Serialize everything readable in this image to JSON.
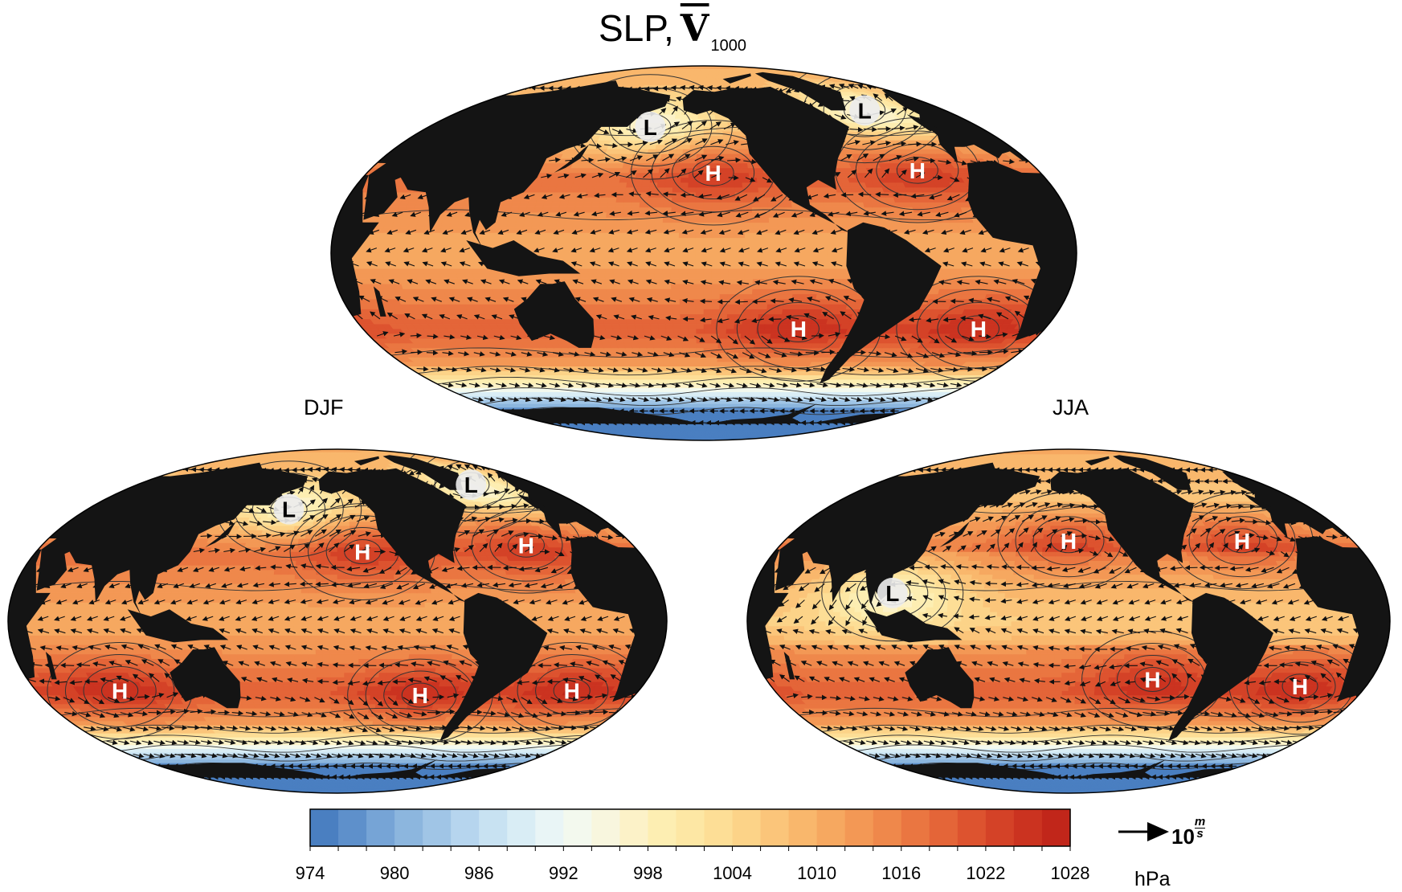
{
  "title": {
    "prefix": "SLP,",
    "vector_symbol": "V",
    "subscript": "1000"
  },
  "panels": [
    {
      "id": "annual",
      "label": ""
    },
    {
      "id": "djf",
      "label": "DJF"
    },
    {
      "id": "jja",
      "label": "JJA"
    }
  ],
  "pressure_centers": {
    "annual": [
      {
        "type": "L",
        "lon": 175,
        "lat": 52
      },
      {
        "type": "L",
        "lon": -30,
        "lat": 60
      },
      {
        "type": "H",
        "lon": -145,
        "lat": 32
      },
      {
        "type": "H",
        "lon": -35,
        "lat": 33
      },
      {
        "type": "H",
        "lon": -100,
        "lat": -30
      },
      {
        "type": "H",
        "lon": -5,
        "lat": -30
      }
    ],
    "djf": [
      {
        "type": "L",
        "lon": 175,
        "lat": 50
      },
      {
        "type": "L",
        "lon": -30,
        "lat": 63
      },
      {
        "type": "H",
        "lon": -135,
        "lat": 30
      },
      {
        "type": "H",
        "lon": -35,
        "lat": 33
      },
      {
        "type": "H",
        "lon": -100,
        "lat": -32
      },
      {
        "type": "H",
        "lon": -10,
        "lat": -30
      },
      {
        "type": "H",
        "lon": 80,
        "lat": -30
      }
    ],
    "jja": [
      {
        "type": "L",
        "lon": 110,
        "lat": 12
      },
      {
        "type": "H",
        "lon": -150,
        "lat": 35
      },
      {
        "type": "H",
        "lon": -40,
        "lat": 35
      },
      {
        "type": "H",
        "lon": -100,
        "lat": -25
      },
      {
        "type": "H",
        "lon": -10,
        "lat": -28
      }
    ]
  },
  "colorbar": {
    "unit": "hPa",
    "min": 974,
    "max": 1028,
    "step": 2,
    "tick_labels": [
      "974",
      "980",
      "986",
      "992",
      "998",
      "1004",
      "1010",
      "1016",
      "1022",
      "1028"
    ],
    "colors": [
      "#4a7fc1",
      "#5e90cb",
      "#76a4d6",
      "#8cb6de",
      "#a0c5e6",
      "#b6d5ee",
      "#c8e2f2",
      "#d9edf5",
      "#e9f5f6",
      "#f3f9ee",
      "#f8f6de",
      "#fcf2c8",
      "#fdeeb2",
      "#fde7a4",
      "#fdde96",
      "#fcd388",
      "#fbc57a",
      "#f9b76c",
      "#f6a860",
      "#f39855",
      "#ef884b",
      "#ea7641",
      "#e46538",
      "#dd532f",
      "#d44227",
      "#cb3320",
      "#c1261a"
    ]
  },
  "reference_vector": {
    "value": "10",
    "unit_numerator": "m",
    "unit_denominator": "s"
  },
  "colors": {
    "land": "#141414",
    "contour": "#333333",
    "center_circle": "#ececec"
  }
}
